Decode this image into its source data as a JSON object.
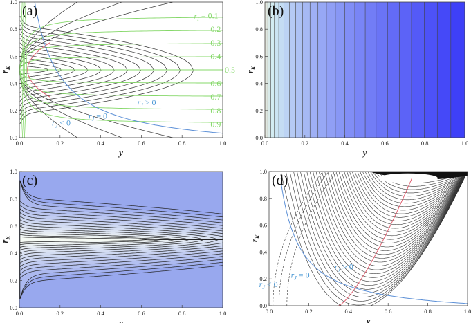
{
  "chart_data": [
    {
      "type": "contour",
      "panel_label": "(a)",
      "xlabel": "y",
      "ylabel": {
        "symbol": "r",
        "subscript": "K"
      },
      "xlim": [
        0,
        1
      ],
      "ylim": [
        0,
        1
      ],
      "xticks": [
        {
          "value": 0,
          "label": "0.0"
        },
        0.2,
        0.4,
        0.6,
        0.8,
        {
          "value": 1,
          "label": "1.0"
        }
      ],
      "yticks": [
        {
          "value": 0,
          "label": "0.0"
        },
        0.2,
        0.4,
        0.6,
        0.8,
        {
          "value": 1,
          "label": "1.0"
        }
      ],
      "contour_label": {
        "symbol": "r",
        "subscript": "I",
        "text": "="
      },
      "contour_levels": [
        0.1,
        0.2,
        0.3,
        0.4,
        0.5,
        0.6,
        0.7,
        0.8,
        0.9
      ],
      "contour_color": "#86d86a",
      "annotations": [
        {
          "symbol": "r",
          "subscript": "J",
          "text": "> 0"
        },
        {
          "symbol": "r",
          "subscript": "J",
          "text": "< 0"
        },
        {
          "symbol": "r",
          "subscript": "J",
          "text": "= 0"
        }
      ],
      "annotation_color": "#4f9bd6"
    },
    {
      "type": "density",
      "panel_label": "(b)",
      "xlabel": "y",
      "ylabel": {
        "symbol": "r",
        "subscript": "K"
      },
      "xlim": [
        0,
        1
      ],
      "ylim": [
        0,
        1
      ],
      "xticks": [
        {
          "value": 0,
          "label": "0.0"
        },
        0.2,
        0.4,
        0.6,
        0.8,
        {
          "value": 1,
          "label": "1.0"
        }
      ],
      "yticks": [
        {
          "value": 0,
          "label": "0.0"
        },
        0.2,
        0.4,
        0.6,
        0.8,
        {
          "value": 1,
          "label": "1.0"
        }
      ]
    },
    {
      "type": "contour",
      "panel_label": "(c)",
      "xlabel": "y",
      "ylabel": {
        "symbol": "r",
        "subscript": "K"
      },
      "xlim": [
        0,
        1
      ],
      "ylim": [
        0,
        1
      ],
      "xticks": [
        {
          "value": 0,
          "label": "0.0"
        },
        0.2,
        0.4,
        0.6,
        0.8,
        {
          "value": 1,
          "label": "1.0"
        }
      ],
      "yticks": [
        {
          "value": 0,
          "label": "0.0"
        },
        0.2,
        0.4,
        0.6,
        0.8,
        {
          "value": 1,
          "label": "1.0"
        }
      ]
    },
    {
      "type": "contour",
      "panel_label": "(d)",
      "xlabel": "y",
      "ylabel": {
        "symbol": "r",
        "subscript": "K"
      },
      "xlim": [
        0,
        1
      ],
      "ylim": [
        0,
        1
      ],
      "xticks": [
        {
          "value": 0,
          "label": "0.0"
        },
        0.2,
        0.4,
        0.6,
        0.8,
        {
          "value": 1,
          "label": "1.0"
        }
      ],
      "yticks": [
        {
          "value": 0,
          "label": "0.0"
        },
        0.2,
        0.4,
        0.6,
        0.8,
        {
          "value": 1,
          "label": "1.0"
        }
      ],
      "annotations": [
        {
          "symbol": "r",
          "subscript": "J",
          "text": "> 0"
        },
        {
          "symbol": "r",
          "subscript": "J",
          "text": "= 0"
        },
        {
          "symbol": "r",
          "subscript": "J",
          "text": "< 0"
        }
      ],
      "annotation_color": "#4f9bd6"
    }
  ]
}
